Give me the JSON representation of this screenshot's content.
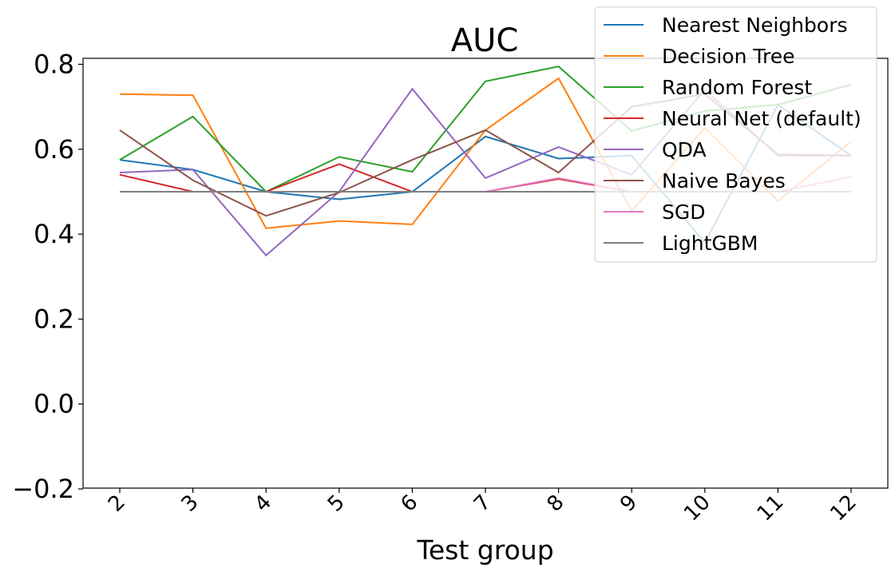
{
  "chart_data": {
    "type": "line",
    "title": "AUC",
    "xlabel": "Test group",
    "ylabel": "",
    "categories": [
      "2",
      "3",
      "4",
      "5",
      "6",
      "7",
      "8",
      "9",
      "10",
      "11",
      "12"
    ],
    "ylim": [
      -0.2,
      0.82
    ],
    "yticks": [
      "0.8",
      "0.6",
      "0.4",
      "0.2",
      "0.0",
      "−0.2"
    ],
    "ytick_values": [
      0.8,
      0.6,
      0.4,
      0.2,
      0.0,
      -0.2
    ],
    "grid": false,
    "legend_position": "top-right",
    "series": [
      {
        "name": "Nearest Neighbors",
        "color": "#1f77b4",
        "values": [
          0.575,
          0.552,
          0.5,
          0.482,
          0.5,
          0.63,
          0.578,
          0.585,
          0.38,
          0.705,
          0.585
        ]
      },
      {
        "name": "Decision Tree",
        "color": "#ff7f0e",
        "values": [
          0.73,
          0.727,
          0.414,
          0.431,
          0.423,
          0.645,
          0.767,
          0.455,
          0.65,
          0.478,
          0.618
        ]
      },
      {
        "name": "Random Forest",
        "color": "#2ca02c",
        "values": [
          0.575,
          0.677,
          0.5,
          0.582,
          0.547,
          0.76,
          0.795,
          0.643,
          0.69,
          0.705,
          0.752
        ]
      },
      {
        "name": "Neural Net (default)",
        "color": "#d62728",
        "values": [
          0.54,
          0.5,
          0.5,
          0.565,
          0.5,
          0.5,
          0.53,
          0.5,
          0.5,
          0.5,
          0.5
        ]
      },
      {
        "name": "QDA",
        "color": "#9467bd",
        "values": [
          0.545,
          0.552,
          0.35,
          0.5,
          0.742,
          0.532,
          0.605,
          0.54,
          0.74,
          0.585,
          0.585
        ]
      },
      {
        "name": "Naive Bayes",
        "color": "#8c564b",
        "values": [
          0.645,
          0.527,
          0.443,
          0.498,
          0.575,
          0.645,
          0.545,
          0.7,
          0.73,
          0.588,
          0.585
        ]
      },
      {
        "name": "SGD",
        "color": "#e377c2",
        "values": [
          0.5,
          0.5,
          0.5,
          0.5,
          0.5,
          0.5,
          0.532,
          0.5,
          0.5,
          0.5,
          0.535
        ]
      },
      {
        "name": "LightGBM",
        "color": "#7f7f7f",
        "values": [
          0.5,
          0.5,
          0.5,
          0.5,
          0.5,
          0.5,
          0.5,
          0.5,
          0.5,
          0.5,
          0.5
        ]
      }
    ]
  }
}
